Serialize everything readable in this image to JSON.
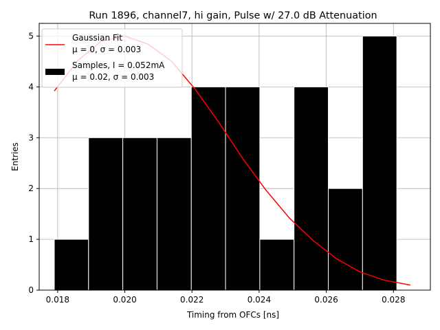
{
  "chart_data": {
    "type": "bar",
    "title": "Run 1896, channel7, hi gain, Pulse w/ 27.0 dB Attenuation",
    "xlabel": "Timing from OFCs [ns]",
    "ylabel": "Entries",
    "xlim": [
      0.01745,
      0.0291
    ],
    "ylim": [
      0,
      5.25
    ],
    "grid": true,
    "legend_position": "top-left",
    "x_ticks": [
      0.018,
      0.02,
      0.022,
      0.024,
      0.026,
      0.028
    ],
    "x_tick_labels": [
      "0.018",
      "0.020",
      "0.022",
      "0.024",
      "0.026",
      "0.028"
    ],
    "y_ticks": [
      0,
      1,
      2,
      3,
      4,
      5
    ],
    "y_tick_labels": [
      "0",
      "1",
      "2",
      "3",
      "4",
      "5"
    ],
    "histogram": {
      "bin_edges": [
        0.0179,
        0.01892,
        0.01994,
        0.02096,
        0.02198,
        0.023,
        0.02402,
        0.02504,
        0.02606,
        0.02708,
        0.0281
      ],
      "values": [
        1,
        3,
        3,
        3,
        4,
        4,
        1,
        4,
        2,
        5
      ],
      "color": "#000000",
      "edgecolor": "#ffffff"
    },
    "fit": {
      "x": [
        0.0179,
        0.0186,
        0.0193,
        0.02,
        0.0207,
        0.0214,
        0.0221,
        0.0228,
        0.0235,
        0.0242,
        0.0249,
        0.0256,
        0.0263,
        0.027,
        0.0277,
        0.0285
      ],
      "y": [
        3.92,
        4.52,
        4.9,
        5.0,
        4.84,
        4.5,
        3.95,
        3.3,
        2.6,
        1.97,
        1.42,
        0.98,
        0.62,
        0.36,
        0.2,
        0.1
      ],
      "color": "#ff0000"
    },
    "legend": [
      {
        "label": "Gaussian Fit",
        "stats": "μ = 0, σ = 0.003",
        "color": "#ff0000",
        "kind": "line"
      },
      {
        "label": "Samples, I = 0.052mA",
        "stats": "μ = 0.02, σ = 0.003",
        "color": "#000000",
        "kind": "patch"
      }
    ]
  }
}
